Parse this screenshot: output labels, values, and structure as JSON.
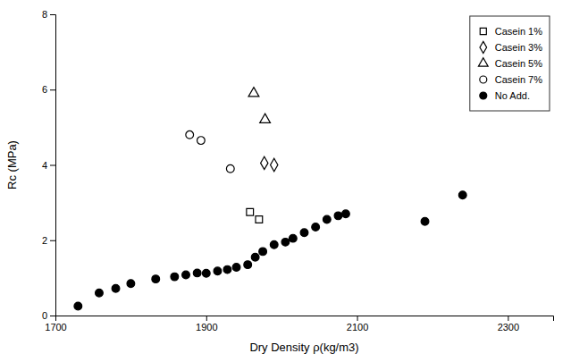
{
  "chart_data": {
    "type": "scatter",
    "xlabel": "Dry Density ρ(kg/m3)",
    "ylabel": "Rc (MPa)",
    "xlim": [
      1700,
      2360
    ],
    "ylim": [
      0,
      8
    ],
    "xticks": [
      1700,
      1900,
      2100,
      2300
    ],
    "yticks": [
      0,
      2,
      4,
      6,
      8
    ],
    "grid": false,
    "legend": "upper right",
    "series": [
      {
        "name": "Casein 1%",
        "color": "black",
        "marker": "square-open",
        "x": [
          1958,
          1970
        ],
        "values": [
          2.75,
          2.55
        ]
      },
      {
        "name": "Casein 3%",
        "color": "black",
        "marker": "diamond-open",
        "x": [
          1977,
          1990
        ],
        "values": [
          4.05,
          4.0
        ]
      },
      {
        "name": "Casein 5%",
        "color": "black",
        "marker": "triangle-up-open",
        "x": [
          1963,
          1978
        ],
        "values": [
          5.9,
          5.2
        ]
      },
      {
        "name": "Casein 7%",
        "color": "black",
        "marker": "circle-open",
        "x": [
          1878,
          1893,
          1932
        ],
        "values": [
          4.8,
          4.65,
          3.9
        ]
      },
      {
        "name": "No Add.",
        "color": "black",
        "marker": "circle",
        "x": [
          1730,
          1758,
          1780,
          1800,
          1833,
          1858,
          1873,
          1888,
          1900,
          1915,
          1928,
          1940,
          1955,
          1965,
          1975,
          1990,
          2005,
          2015,
          2030,
          2045,
          2060,
          2075,
          2085,
          2190,
          2240
        ],
        "values": [
          0.25,
          0.6,
          0.72,
          0.85,
          0.97,
          1.03,
          1.08,
          1.13,
          1.12,
          1.18,
          1.22,
          1.28,
          1.35,
          1.55,
          1.7,
          1.88,
          1.95,
          2.05,
          2.2,
          2.35,
          2.55,
          2.65,
          2.7,
          2.5,
          3.2
        ]
      }
    ]
  }
}
